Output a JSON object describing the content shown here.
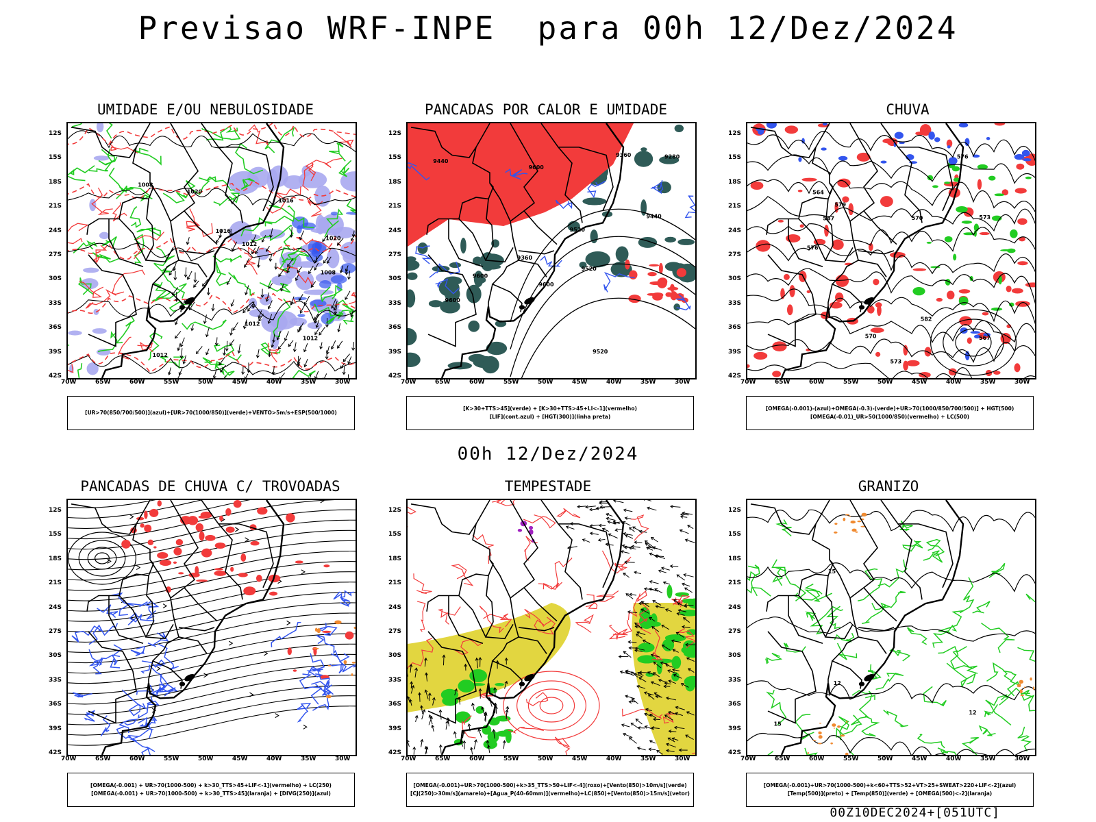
{
  "header": {
    "title": "Previsao WRF-INPE  para 00h 12/Dez/2024",
    "subtitle": "00h 12/Dez/2024",
    "footer": "00Z10DEC2024+[051UTC]"
  },
  "axes": {
    "lat_labels": [
      "12S",
      "15S",
      "18S",
      "21S",
      "24S",
      "27S",
      "30S",
      "33S",
      "36S",
      "39S",
      "42S"
    ],
    "lon_labels": [
      "70W",
      "65W",
      "60W",
      "55W",
      "50W",
      "45W",
      "40W",
      "35W",
      "30W"
    ]
  },
  "colors": {
    "red": "#f23b3b",
    "green": "#22cc22",
    "blue": "#3355ee",
    "lavender": "#a9a9f0",
    "dark_teal": "#2f5b57",
    "yellow": "#e2d640",
    "orange": "#f08a30",
    "purple": "#a020c0",
    "black": "#000000"
  },
  "panels": [
    {
      "title": "UMIDADE E/OU NEBULOSIDADE",
      "legend": [
        "[UR>70(850/700/500)](azul)+[UR>70(1000/850)](verde)+VENTO>5m/s+ESP(500/1000)"
      ],
      "contour_labels": [
        "1008",
        "1012",
        "1016",
        "1020",
        "1008",
        "1012",
        "1016",
        "1012",
        "1020",
        "1012"
      ]
    },
    {
      "title": "PANCADAS POR CALOR E UMIDADE",
      "legend": [
        "[K>30+TTS>45](verde) + [K>30+TTS>45+LI<-1](vermelho)",
        "[LIF](cont.azul) + [HGT(300)](linha preta)"
      ],
      "contour_labels": [
        "9600",
        "9600",
        "9600",
        "9520",
        "9440",
        "9360",
        "9280",
        "9600",
        "9520",
        "9520",
        "9440",
        "9360"
      ]
    },
    {
      "title": "CHUVA",
      "legend": [
        "[OMEGA(-0.001)-(azul)+OMEGA(-0.3)-(verde)+UR>70(1000/850/700/500)] + HGT(500)",
        "[OMEGA(-0.01)_UR>50(1000/850)(vermelho) + LC(500)"
      ],
      "contour_labels": [
        "582",
        "576",
        "573",
        "570",
        "567",
        "564",
        "579",
        "576",
        "573",
        "570",
        "567"
      ]
    },
    {
      "title": "PANCADAS DE CHUVA C/ TROVOADAS",
      "legend": [
        "[OMEGA(-0.001) + UR>70(1000-500) + k>30_TTS>45+LIF<-1](vermelho) + LC(250)",
        "[OMEGA(-0.001) + UR>70(1000-500) + k>30_TTS>45](laranja) + [DIVG(250)](azul)"
      ],
      "contour_labels": []
    },
    {
      "title": "TEMPESTADE",
      "legend": [
        "[OMEGA(-0.001)+UR>70(1000-500)+k>35_TTS>50+LIF<-4](roxo)+[Vento(850)>10m/s](verde)",
        "[CJ(250)>30m/s](amarelo)+[Agua_P(40-60mm)](vermelho)+LC(850)+[Vento(850)>15m/s](vetor)"
      ],
      "contour_labels": []
    },
    {
      "title": "GRANIZO",
      "legend": [
        "[OMEGA(-0.001)+UR>70(1000-500)+k<60+TTS>52+VT>25+SWEAT>220+LIF<-2](azul)",
        "[Temp(500)](preto) + [Temp(850)](verde) + [OMEGA(500)<-2](laranja)"
      ],
      "contour_labels": [
        "12",
        "15",
        "15",
        "12"
      ]
    }
  ]
}
